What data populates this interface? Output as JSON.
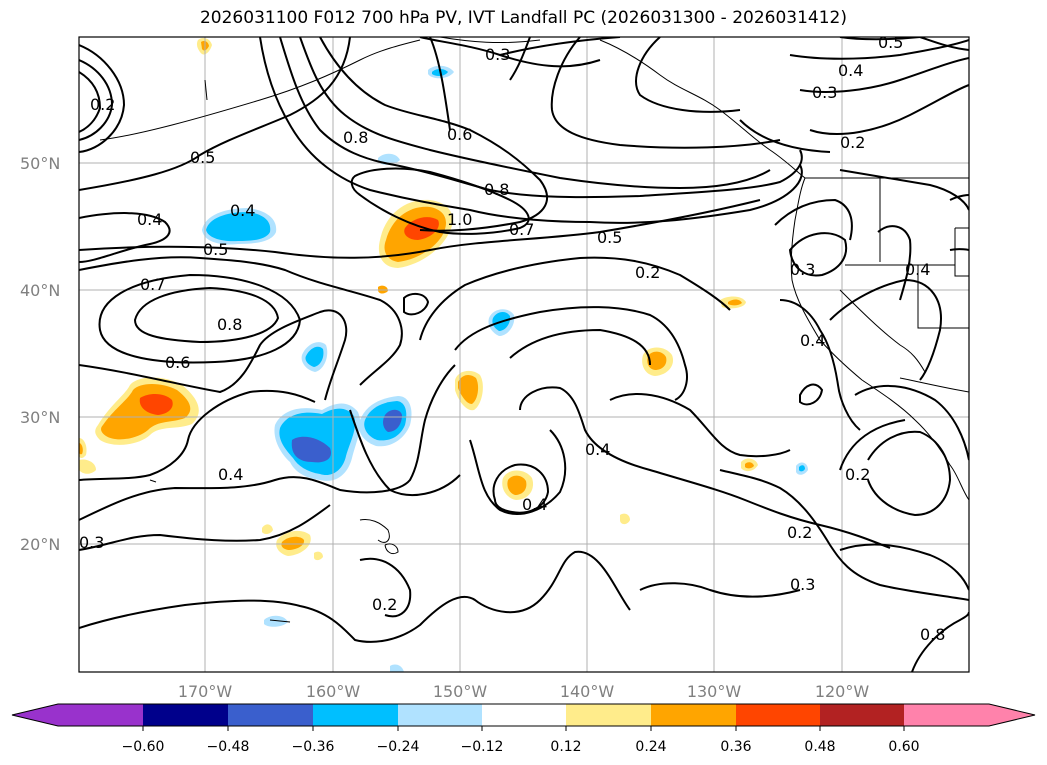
{
  "title": "2026031100 F012 700 hPa PV, IVT Landfall PC (2026031300 - 2026031412)",
  "map": {
    "lat_labels": [
      "50°N",
      "40°N",
      "30°N",
      "20°N"
    ],
    "lon_labels": [
      "170°W",
      "160°W",
      "150°W",
      "140°W",
      "130°W",
      "120°W"
    ],
    "contour_labels": [
      "0.3",
      "0.5",
      "0.4",
      "0.3",
      "0.2",
      "0.8",
      "0.6",
      "0.5",
      "0.4",
      "0.4",
      "0.5",
      "0.8",
      "1.0",
      "0.7",
      "0.5",
      "0.7",
      "0.8",
      "0.6",
      "0.2",
      "0.3",
      "0.4",
      "0.4",
      "0.4",
      "0.4",
      "0.4",
      "0.2",
      "0.2",
      "0.3",
      "0.3",
      "0.2",
      "0.8",
      "0.2"
    ]
  },
  "colorbar": {
    "ticks": [
      "−0.60",
      "−0.48",
      "−0.36",
      "−0.24",
      "−0.12",
      "0.12",
      "0.24",
      "0.36",
      "0.48",
      "0.60"
    ],
    "colors": [
      "#9932cc",
      "#00008b",
      "#3a5fcd",
      "#00bfff",
      "#b0e2ff",
      "#ffffff",
      "#ffec8b",
      "#ffa500",
      "#ff4500",
      "#b22222",
      "#ff82ab"
    ]
  },
  "colors": {
    "coast": "#000000",
    "grid": "#b0b0b0",
    "contour": "#000000"
  }
}
